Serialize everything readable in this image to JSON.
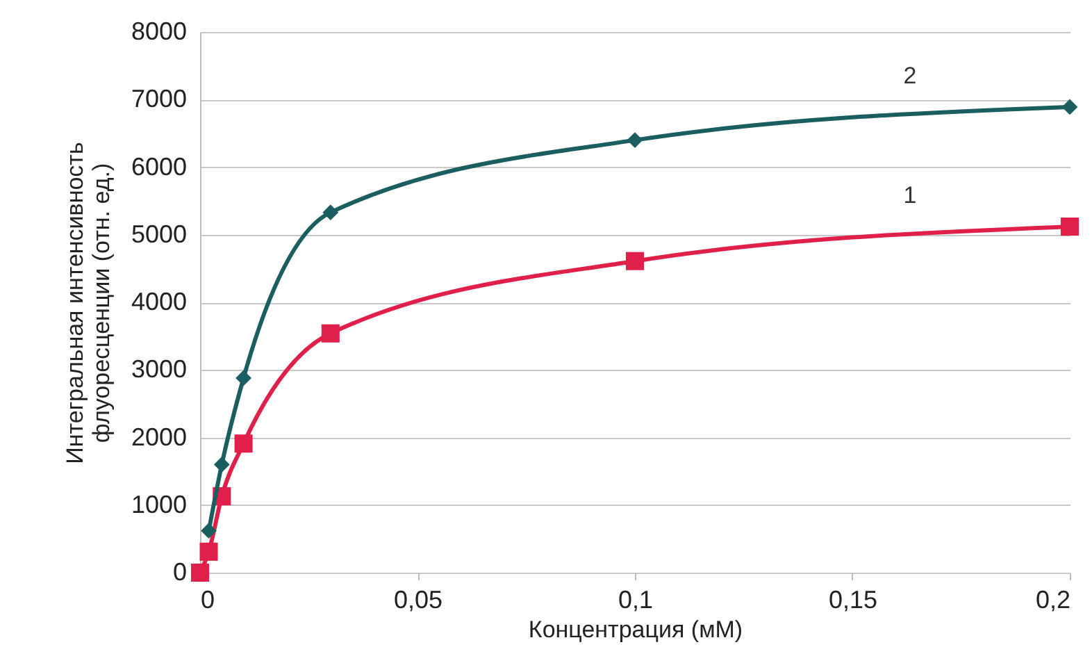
{
  "chart_data": {
    "type": "line",
    "xlabel": "Концентрация (мМ)",
    "ylabel": "Интегральная интенсивность флуоресценции (отн. ед.)",
    "xlim": [
      0,
      0.2
    ],
    "xticks": [
      0,
      {
        "value": 0.05,
        "label": "0,05"
      },
      {
        "value": 0.1,
        "label": "0,1"
      },
      {
        "value": 0.15,
        "label": "0,15"
      },
      {
        "value": 0.2,
        "label": "0,2"
      }
    ],
    "ylim": [
      0,
      8000
    ],
    "yticks": [
      0,
      1000,
      2000,
      3000,
      4000,
      5000,
      6000,
      7000,
      8000
    ],
    "grid": "y",
    "legend": false,
    "series": [
      {
        "name": "1",
        "color": "#e0204a",
        "marker": "square",
        "x": [
          0,
          0.002,
          0.005,
          0.01,
          0.03,
          0.1,
          0.2
        ],
        "values": [
          0,
          310,
          1130,
          1910,
          3540,
          4610,
          5120
        ]
      },
      {
        "name": "2",
        "color": "#1b5e60",
        "marker": "diamond",
        "x": [
          0.002,
          0.005,
          0.01,
          0.03,
          0.1,
          0.2
        ],
        "values": [
          620,
          1600,
          2880,
          5330,
          6400,
          6890
        ]
      }
    ]
  }
}
